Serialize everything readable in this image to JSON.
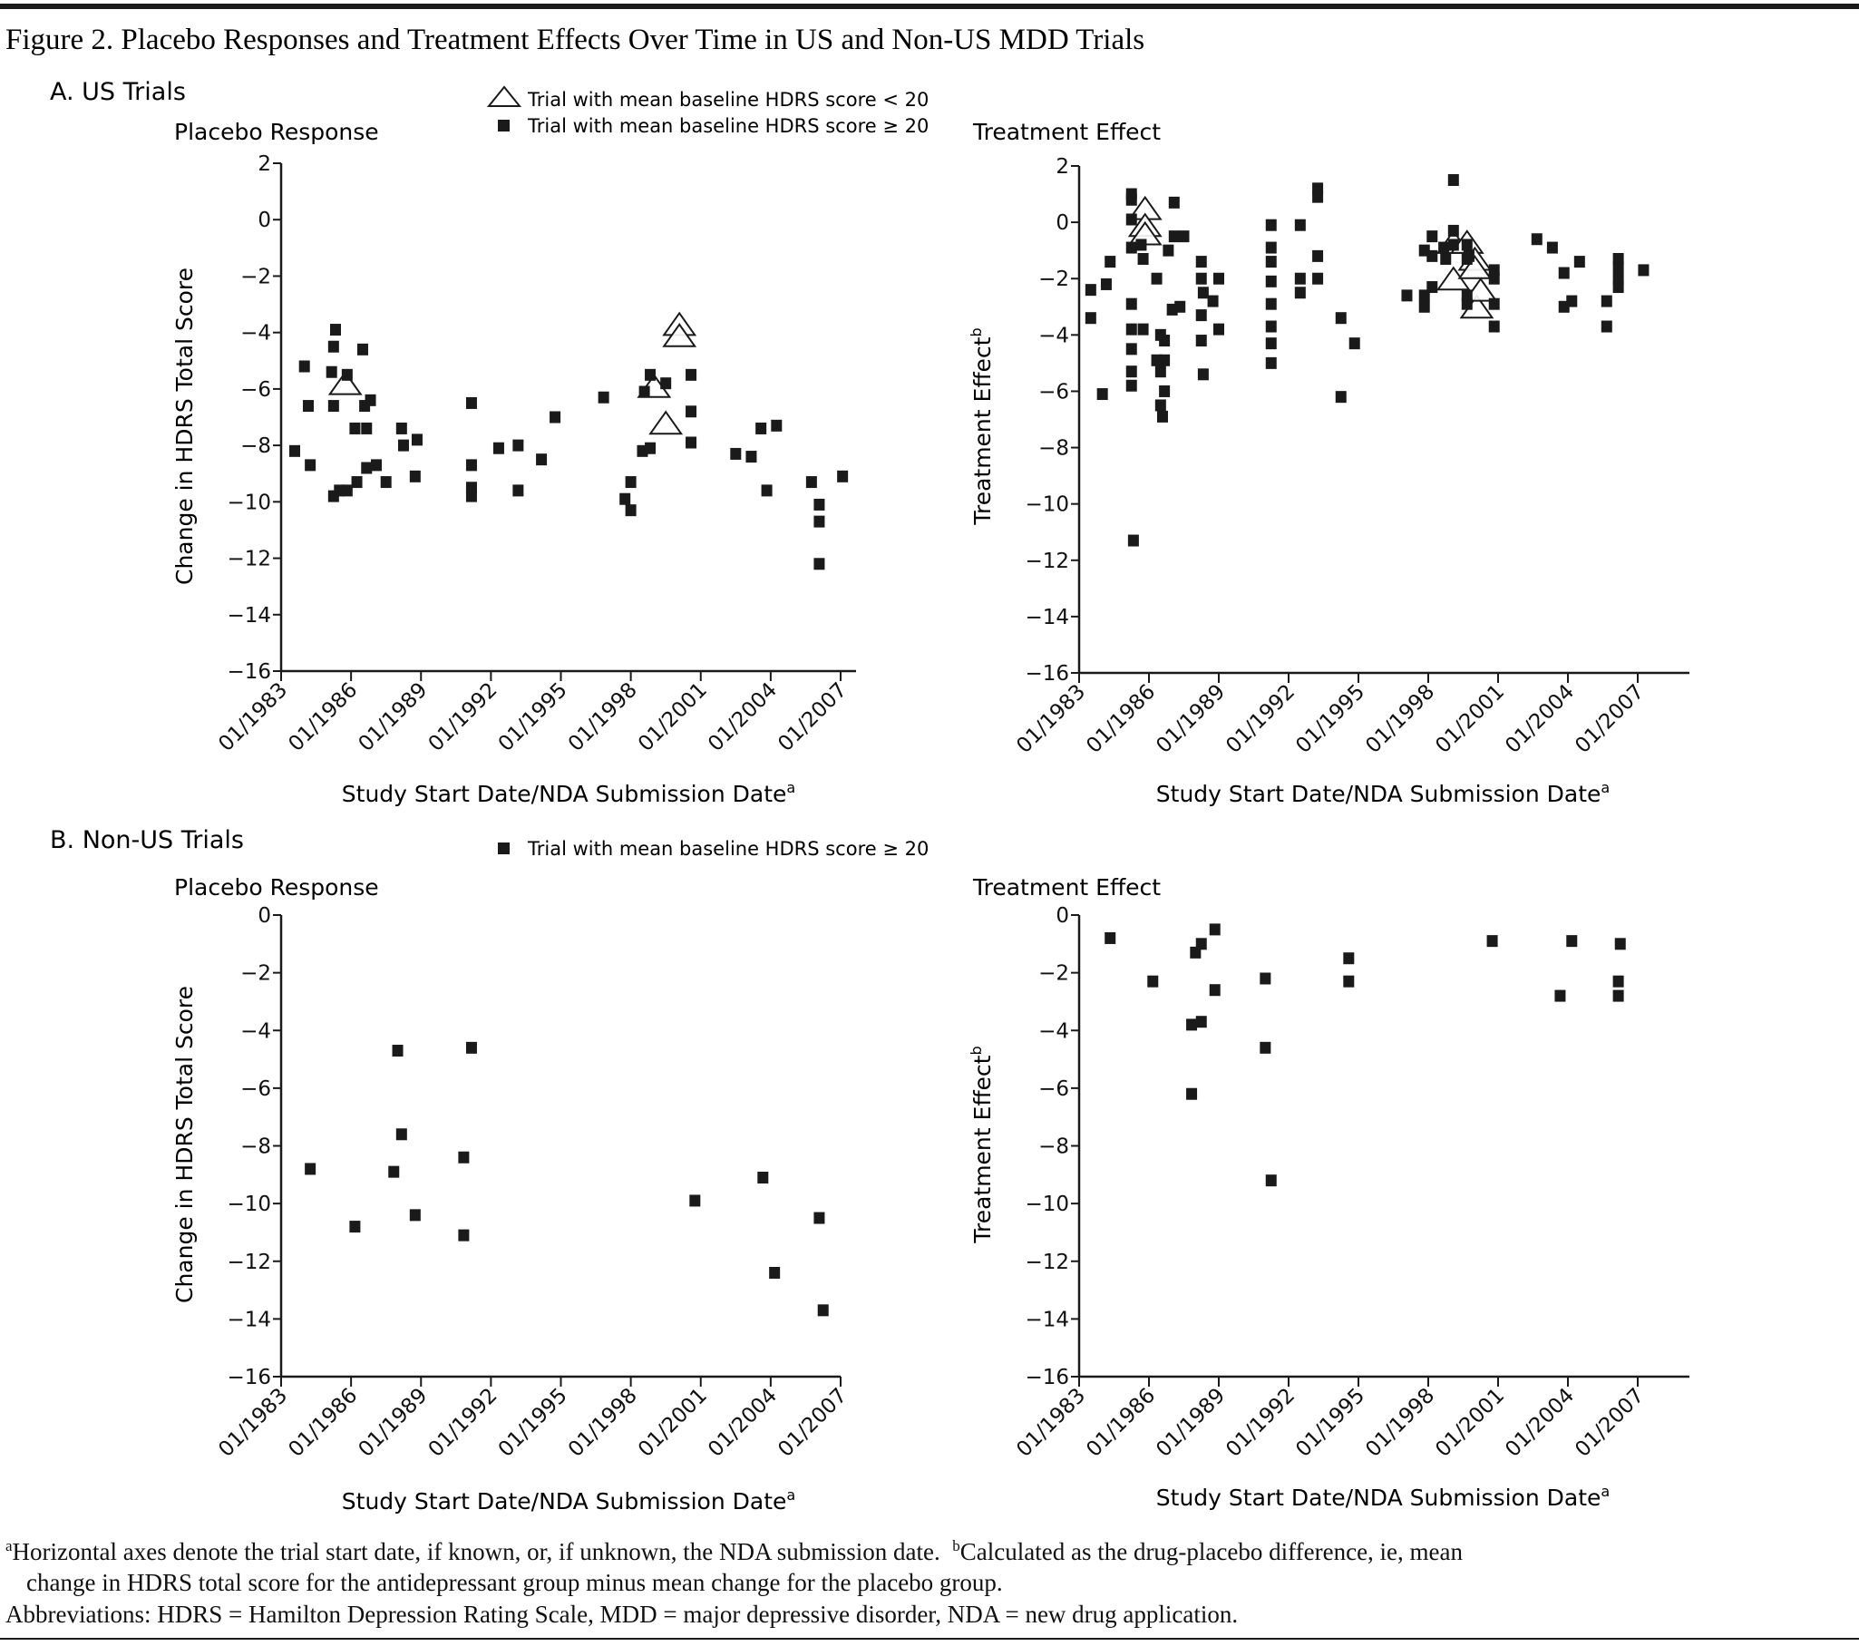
{
  "figure_title": "Figure 2. Placebo Responses and Treatment Effects Over Time in US and Non-US MDD Trials",
  "panel_a": "A. US Trials",
  "panel_b": "B. Non-US Trials",
  "legend": {
    "a_items": [
      {
        "marker": "open-triangle",
        "label": "Trial with mean baseline HDRS score < 20"
      },
      {
        "marker": "filled-square",
        "label": "Trial with mean baseline HDRS score ≥ 20"
      }
    ],
    "b_items": [
      {
        "marker": "filled-square",
        "label": "Trial with mean baseline HDRS score ≥ 20"
      }
    ]
  },
  "colors": {
    "marker": "#1a1a1a",
    "axis": "#1a1a1a",
    "background": "#ffffff"
  },
  "footnotes": {
    "a_mark": "a",
    "a_text": "Horizontal axes denote the trial start date, if known, or, if unknown, the NDA submission date.",
    "b_mark": "b",
    "b_text_1": "Calculated as the drug-placebo difference, ie, mean",
    "b_text_2": "change in HDRS total score for the antidepressant group minus mean change for the placebo group.",
    "abbreviations": "Abbreviations: HDRS = Hamilton Depression Rating Scale, MDD = major depressive disorder, NDA = new drug application."
  },
  "chart_data": [
    {
      "type": "scatter",
      "panel": "A. US Trials",
      "title": "Placebo Response",
      "ylabel": "Change in HDRS Total Score",
      "ylabel_note": "",
      "xlabel": "Study Start Date/NDA Submission Date",
      "xlabel_note": "a",
      "ylim": [
        -16,
        2
      ],
      "yticks": [
        2,
        0,
        -2,
        -4,
        -6,
        -8,
        -10,
        -12,
        -14,
        -16
      ],
      "xticks": [
        "01/1983",
        "01/1986",
        "01/1989",
        "01/1992",
        "01/1995",
        "01/1998",
        "01/2001",
        "01/2004",
        "01/2007"
      ],
      "grid": false,
      "series": [
        {
          "name": "Trial with mean baseline HDRS score < 20",
          "marker": "open-triangle",
          "points": [
            [
              "1985-10",
              -5.8
            ],
            [
              "2000-02",
              -3.7
            ],
            [
              "2000-02",
              -4.1
            ],
            [
              "1999-01",
              -5.9
            ],
            [
              "1999-07",
              -7.2
            ]
          ]
        },
        {
          "name": "Trial with mean baseline HDRS score ≥ 20",
          "marker": "filled-square",
          "points": [
            [
              "1983-08",
              -8.2
            ],
            [
              "1984-01",
              -5.2
            ],
            [
              "1984-03",
              -6.6
            ],
            [
              "1984-04",
              -8.7
            ],
            [
              "1985-03",
              -5.4
            ],
            [
              "1985-04",
              -9.8
            ],
            [
              "1985-04",
              -6.6
            ],
            [
              "1985-04",
              -4.5
            ],
            [
              "1985-05",
              -3.9
            ],
            [
              "1985-07",
              -9.6
            ],
            [
              "1985-11",
              -5.5
            ],
            [
              "1985-11",
              -9.6
            ],
            [
              "1986-03",
              -7.4
            ],
            [
              "1986-04",
              -9.3
            ],
            [
              "1986-07",
              -4.6
            ],
            [
              "1986-08",
              -6.6
            ],
            [
              "1986-09",
              -7.4
            ],
            [
              "1986-09",
              -8.8
            ],
            [
              "1986-11",
              -6.4
            ],
            [
              "1987-02",
              -8.7
            ],
            [
              "1987-07",
              -9.3
            ],
            [
              "1988-03",
              -7.4
            ],
            [
              "1988-04",
              -8.0
            ],
            [
              "1988-10",
              -9.1
            ],
            [
              "1988-11",
              -7.8
            ],
            [
              "1991-03",
              -6.5
            ],
            [
              "1991-03",
              -8.7
            ],
            [
              "1991-03",
              -9.5
            ],
            [
              "1991-03",
              -9.8
            ],
            [
              "1992-05",
              -8.1
            ],
            [
              "1993-03",
              -8.0
            ],
            [
              "1993-03",
              -9.6
            ],
            [
              "1994-03",
              -8.5
            ],
            [
              "1994-10",
              -7.0
            ],
            [
              "1996-11",
              -6.3
            ],
            [
              "1997-10",
              -9.9
            ],
            [
              "1998-01",
              -9.3
            ],
            [
              "1998-01",
              -10.3
            ],
            [
              "1998-07",
              -8.2
            ],
            [
              "1998-08",
              -6.1
            ],
            [
              "1998-11",
              -8.1
            ],
            [
              "1998-11",
              -5.5
            ],
            [
              "1999-07",
              -5.8
            ],
            [
              "2000-08",
              -5.5
            ],
            [
              "2000-08",
              -6.8
            ],
            [
              "2000-08",
              -7.9
            ],
            [
              "2002-07",
              -8.3
            ],
            [
              "2003-03",
              -8.4
            ],
            [
              "2003-08",
              -7.4
            ],
            [
              "2003-11",
              -9.6
            ],
            [
              "2004-04",
              -7.3
            ],
            [
              "2005-10",
              -9.3
            ],
            [
              "2006-02",
              -10.1
            ],
            [
              "2006-02",
              -10.7
            ],
            [
              "2006-02",
              -12.2
            ],
            [
              "2007-02",
              -9.1
            ]
          ]
        }
      ]
    },
    {
      "type": "scatter",
      "panel": "A. US Trials",
      "title": "Treatment Effect",
      "ylabel": "Treatment Effect",
      "ylabel_note": "b",
      "xlabel": "Study Start Date/NDA Submission Date",
      "xlabel_note": "a",
      "ylim": [
        -16,
        2
      ],
      "yticks": [
        2,
        0,
        -2,
        -4,
        -6,
        -8,
        -10,
        -12,
        -14,
        -16
      ],
      "xticks": [
        "01/1983",
        "01/1986",
        "01/1989",
        "01/1992",
        "01/1995",
        "01/1998",
        "01/2001",
        "01/2004",
        "01/2007"
      ],
      "grid": false,
      "series": [
        {
          "name": "Trial with mean baseline HDRS score < 20",
          "marker": "open-triangle",
          "points": [
            [
              "1985-11",
              0.5
            ],
            [
              "1985-11",
              -0.1
            ],
            [
              "1985-11",
              -0.4
            ],
            [
              "1999-02",
              -0.7
            ],
            [
              "1999-02",
              -2.0
            ],
            [
              "1999-09",
              -0.7
            ],
            [
              "2000-01",
              -1.3
            ],
            [
              "2000-01",
              -1.6
            ],
            [
              "2000-02",
              -3.0
            ],
            [
              "2000-04",
              -2.4
            ]
          ]
        },
        {
          "name": "Trial with mean baseline HDRS score ≥ 20",
          "marker": "filled-square",
          "points": [
            [
              "1983-07",
              -2.4
            ],
            [
              "1983-07",
              -3.4
            ],
            [
              "1984-01",
              -6.1
            ],
            [
              "1984-03",
              -2.2
            ],
            [
              "1984-05",
              -1.4
            ],
            [
              "1985-04",
              1.0
            ],
            [
              "1985-04",
              0.8
            ],
            [
              "1985-04",
              0.1
            ],
            [
              "1985-04",
              -0.9
            ],
            [
              "1985-04",
              -2.9
            ],
            [
              "1985-04",
              -3.8
            ],
            [
              "1985-04",
              -4.5
            ],
            [
              "1985-04",
              -5.3
            ],
            [
              "1985-04",
              -5.8
            ],
            [
              "1985-05",
              -11.3
            ],
            [
              "1985-09",
              -0.8
            ],
            [
              "1985-10",
              -1.3
            ],
            [
              "1985-10",
              -3.8
            ],
            [
              "1986-05",
              -2.0
            ],
            [
              "1986-05",
              -4.9
            ],
            [
              "1986-07",
              -4.0
            ],
            [
              "1986-07",
              -5.3
            ],
            [
              "1986-07",
              -6.5
            ],
            [
              "1986-08",
              -6.9
            ],
            [
              "1986-09",
              -4.2
            ],
            [
              "1986-09",
              -4.9
            ],
            [
              "1986-09",
              -6.0
            ],
            [
              "1986-11",
              -1.0
            ],
            [
              "1987-01",
              -3.1
            ],
            [
              "1987-02",
              0.7
            ],
            [
              "1987-02",
              -0.5
            ],
            [
              "1987-05",
              -3.0
            ],
            [
              "1987-07",
              -0.5
            ],
            [
              "1988-04",
              -1.4
            ],
            [
              "1988-04",
              -2.0
            ],
            [
              "1988-04",
              -3.3
            ],
            [
              "1988-04",
              -4.2
            ],
            [
              "1988-05",
              -2.5
            ],
            [
              "1988-05",
              -5.4
            ],
            [
              "1988-10",
              -2.8
            ],
            [
              "1989-01",
              -2.0
            ],
            [
              "1989-01",
              -3.8
            ],
            [
              "1991-04",
              -0.1
            ],
            [
              "1991-04",
              -0.9
            ],
            [
              "1991-04",
              -1.4
            ],
            [
              "1991-04",
              -2.1
            ],
            [
              "1991-04",
              -2.9
            ],
            [
              "1991-04",
              -3.7
            ],
            [
              "1991-04",
              -4.3
            ],
            [
              "1991-04",
              -5.0
            ],
            [
              "1992-07",
              -0.1
            ],
            [
              "1992-07",
              -2.0
            ],
            [
              "1992-07",
              -2.5
            ],
            [
              "1993-04",
              1.2
            ],
            [
              "1993-04",
              0.9
            ],
            [
              "1993-04",
              -1.2
            ],
            [
              "1993-04",
              -2.0
            ],
            [
              "1994-04",
              -3.4
            ],
            [
              "1994-04",
              -6.2
            ],
            [
              "1994-11",
              -4.3
            ],
            [
              "1997-02",
              -2.6
            ],
            [
              "1997-11",
              -2.6
            ],
            [
              "1997-11",
              -3.0
            ],
            [
              "1997-11",
              -1.0
            ],
            [
              "1998-03",
              -2.3
            ],
            [
              "1998-03",
              -1.2
            ],
            [
              "1998-03",
              -0.5
            ],
            [
              "1998-09",
              -0.9
            ],
            [
              "1998-10",
              -1.3
            ],
            [
              "1999-02",
              1.5
            ],
            [
              "1999-02",
              -0.3
            ],
            [
              "1999-02",
              -0.8
            ],
            [
              "1999-09",
              -0.8
            ],
            [
              "1999-09",
              -1.3
            ],
            [
              "1999-09",
              -2.6
            ],
            [
              "1999-09",
              -2.9
            ],
            [
              "1999-10",
              -1.2
            ],
            [
              "2000-11",
              -1.7
            ],
            [
              "2000-11",
              -2.0
            ],
            [
              "2000-11",
              -2.9
            ],
            [
              "2000-11",
              -3.7
            ],
            [
              "2002-09",
              -0.6
            ],
            [
              "2003-05",
              -0.9
            ],
            [
              "2003-11",
              -1.8
            ],
            [
              "2003-11",
              -3.0
            ],
            [
              "2004-03",
              -2.8
            ],
            [
              "2004-07",
              -1.4
            ],
            [
              "2005-09",
              -2.8
            ],
            [
              "2005-09",
              -3.7
            ],
            [
              "2006-03",
              -1.3
            ],
            [
              "2006-03",
              -1.6
            ],
            [
              "2006-03",
              -2.0
            ],
            [
              "2006-03",
              -2.3
            ],
            [
              "2007-04",
              -1.7
            ]
          ]
        }
      ]
    },
    {
      "type": "scatter",
      "panel": "B. Non-US Trials",
      "title": "Placebo Response",
      "ylabel": "Change in HDRS Total Score",
      "ylabel_note": "",
      "xlabel": "Study Start Date/NDA Submission Date",
      "xlabel_note": "a",
      "ylim": [
        -16,
        0
      ],
      "yticks": [
        0,
        -2,
        -4,
        -6,
        -8,
        -10,
        -12,
        -14,
        -16
      ],
      "xticks": [
        "01/1983",
        "01/1986",
        "01/1989",
        "01/1992",
        "01/1995",
        "01/1998",
        "01/2001",
        "01/2004",
        "01/2007"
      ],
      "grid": false,
      "series": [
        {
          "name": "Trial with mean baseline HDRS score ≥ 20",
          "marker": "filled-square",
          "points": [
            [
              "1984-04",
              -8.8
            ],
            [
              "1986-03",
              -10.8
            ],
            [
              "1987-11",
              -8.9
            ],
            [
              "1988-01",
              -4.7
            ],
            [
              "1988-03",
              -7.6
            ],
            [
              "1988-10",
              -10.4
            ],
            [
              "1990-11",
              -8.4
            ],
            [
              "1990-11",
              -11.1
            ],
            [
              "1991-03",
              -4.6
            ],
            [
              "2000-10",
              -9.9
            ],
            [
              "2003-09",
              -9.1
            ],
            [
              "2004-03",
              -12.4
            ],
            [
              "2006-02",
              -10.5
            ],
            [
              "2006-04",
              -13.7
            ]
          ]
        }
      ]
    },
    {
      "type": "scatter",
      "panel": "B. Non-US Trials",
      "title": "Treatment Effect",
      "ylabel": "Treatment Effect",
      "ylabel_note": "b",
      "xlabel": "Study Start Date/NDA Submission Date",
      "xlabel_note": "a",
      "ylim": [
        -16,
        0
      ],
      "yticks": [
        0,
        -2,
        -4,
        -6,
        -8,
        -10,
        -12,
        -14,
        -16
      ],
      "xticks": [
        "01/1983",
        "01/1986",
        "01/1989",
        "01/1992",
        "01/1995",
        "01/1998",
        "01/2001",
        "01/2004",
        "01/2007"
      ],
      "grid": false,
      "series": [
        {
          "name": "Trial with mean baseline HDRS score ≥ 20",
          "marker": "filled-square",
          "points": [
            [
              "1984-05",
              -0.8
            ],
            [
              "1986-03",
              -2.3
            ],
            [
              "1988-01",
              -1.3
            ],
            [
              "1988-04",
              -1.0
            ],
            [
              "1988-04",
              -3.7
            ],
            [
              "1988-11",
              -0.5
            ],
            [
              "1988-11",
              -2.6
            ],
            [
              "1987-11",
              -3.8
            ],
            [
              "1987-11",
              -6.2
            ],
            [
              "1991-01",
              -2.2
            ],
            [
              "1991-01",
              -4.6
            ],
            [
              "1991-04",
              -9.2
            ],
            [
              "1994-08",
              -1.5
            ],
            [
              "1994-08",
              -2.3
            ],
            [
              "2000-10",
              -0.9
            ],
            [
              "2003-09",
              -2.8
            ],
            [
              "2004-03",
              -0.9
            ],
            [
              "2006-03",
              -2.3
            ],
            [
              "2006-03",
              -2.8
            ],
            [
              "2006-04",
              -1.0
            ]
          ]
        }
      ]
    }
  ]
}
